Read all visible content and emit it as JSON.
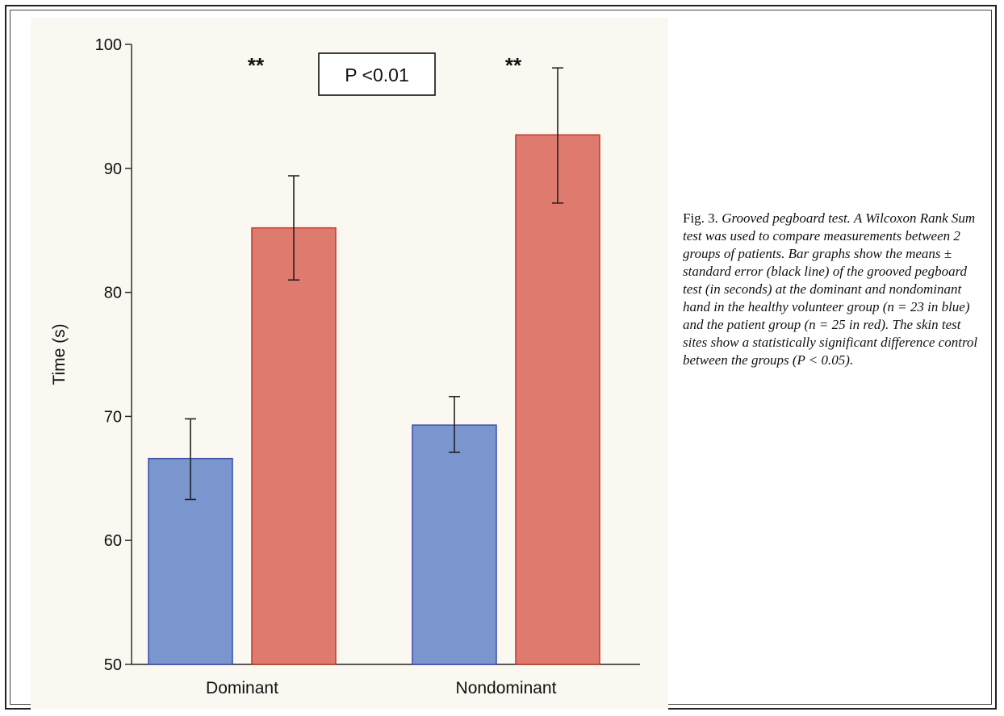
{
  "chart_data": {
    "type": "bar",
    "categories": [
      "Dominant",
      "Nondominant"
    ],
    "series": [
      {
        "color": "#7b95cf",
        "stroke": "#3b4fa8",
        "values": [
          66.6,
          69.3
        ],
        "error_low": [
          63.3,
          67.1
        ],
        "error_high": [
          69.8,
          71.6
        ]
      },
      {
        "color": "#de7b6e",
        "stroke": "#c0392b",
        "values": [
          85.2,
          92.7
        ],
        "error_low": [
          81.0,
          87.2
        ],
        "error_high": [
          89.4,
          98.1
        ]
      }
    ],
    "ylabel": "Time (s)",
    "xlabel": "",
    "ylim": [
      50,
      100
    ],
    "yticks": [
      50,
      60,
      70,
      80,
      90,
      100
    ],
    "grid": false,
    "annotations": {
      "significance_left": "**",
      "significance_right": "**",
      "pvalue_box": "P <0.01"
    }
  },
  "caption": {
    "fig_label": "Fig. 3.",
    "text": "Grooved pegboard test. A Wilcoxon Rank Sum test was used to compare measurements between 2 groups of patients. Bar graphs show the means ± standard error (black line) of the grooved pegboard test (in seconds) at the dominant and nondominant hand in the healthy volunteer group (n = 23 in blue) and the patient group (n = 25 in red). The skin test sites show a statistically significant difference control between the groups (P < 0.05)."
  }
}
